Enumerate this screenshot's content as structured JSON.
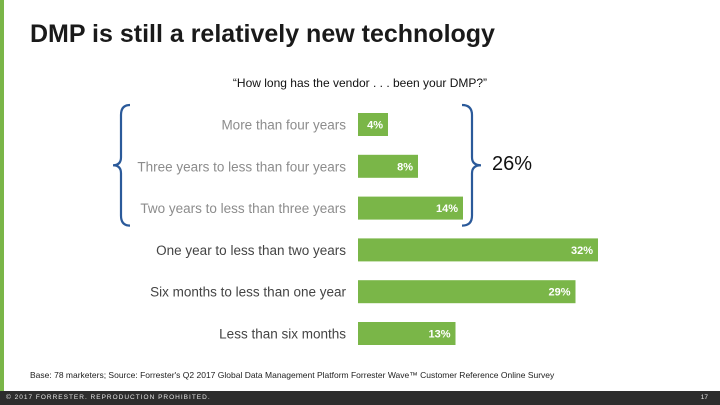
{
  "slide": {
    "title": "DMP is still a relatively new technology",
    "question": "“How long has the vendor . . . been your DMP?”",
    "callout": "26%",
    "base_note": "Base: 78 marketers; Source: Forrester's Q2 2017 Global Data Management Platform Forrester Wave™ Customer Reference Online Survey",
    "copyright": "© 2017 FORRESTER. REPRODUCTION PROHIBITED.",
    "page_number": "17"
  },
  "colors": {
    "bar": "#7ab648",
    "bracket": "#2b5a9a",
    "label_dim": "#8c8c8c",
    "label_dark": "#444444"
  },
  "chart_data": {
    "type": "bar",
    "orientation": "horizontal",
    "categories": [
      "More than four years",
      "Three years to less than four years",
      "Two years to less than three years",
      "One year to less than two years",
      "Six months to less than one year",
      "Less than six months"
    ],
    "values": [
      4,
      8,
      14,
      32,
      29,
      13
    ],
    "data_labels": [
      "4%",
      "8%",
      "14%",
      "32%",
      "29%",
      "13%"
    ],
    "unit": "%",
    "grouped_categories": [
      0,
      1,
      2
    ],
    "grouped_total_label": "26%",
    "grid": false,
    "legend": "none"
  }
}
